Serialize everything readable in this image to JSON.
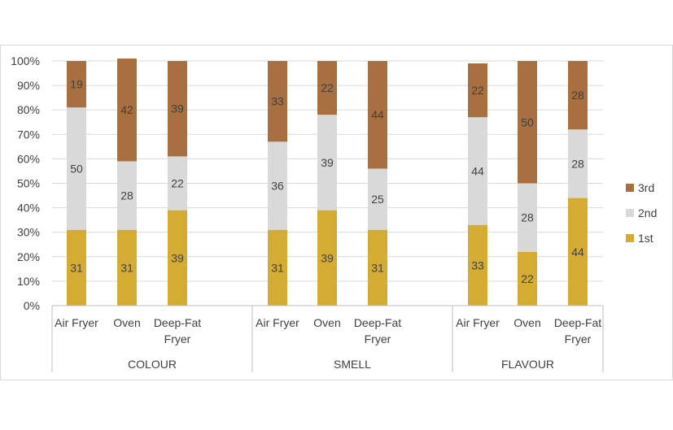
{
  "chart_data": {
    "type": "bar",
    "stacked": true,
    "percent_stacked": true,
    "groups": [
      {
        "name": "COLOUR",
        "categories": [
          [
            "Air Fryer"
          ],
          [
            "Oven"
          ],
          [
            "Deep-Fat",
            "Fryer"
          ]
        ]
      },
      {
        "name": "SMELL",
        "categories": [
          [
            "Air Fryer"
          ],
          [
            "Oven"
          ],
          [
            "Deep-Fat",
            "Fryer"
          ]
        ]
      },
      {
        "name": "FLAVOUR",
        "categories": [
          [
            "Air Fryer"
          ],
          [
            "Oven"
          ],
          [
            "Deep-Fat",
            "Fryer"
          ]
        ]
      }
    ],
    "series": [
      {
        "name": "1st",
        "color": "#D4AC34",
        "values": [
          31,
          31,
          39,
          31,
          39,
          31,
          33,
          22,
          44
        ]
      },
      {
        "name": "2nd",
        "color": "#D9D9D9",
        "values": [
          50,
          28,
          22,
          36,
          39,
          25,
          44,
          28,
          28
        ]
      },
      {
        "name": "3rd",
        "color": "#A86F41",
        "values": [
          19,
          42,
          39,
          33,
          22,
          44,
          22,
          50,
          28
        ]
      }
    ],
    "y_ticks": [
      "0%",
      "10%",
      "20%",
      "30%",
      "40%",
      "50%",
      "60%",
      "70%",
      "80%",
      "90%",
      "100%"
    ],
    "ylim": [
      0,
      100
    ],
    "grid": true,
    "legend": {
      "position": "right",
      "order": [
        "3rd",
        "2nd",
        "1st"
      ]
    }
  }
}
